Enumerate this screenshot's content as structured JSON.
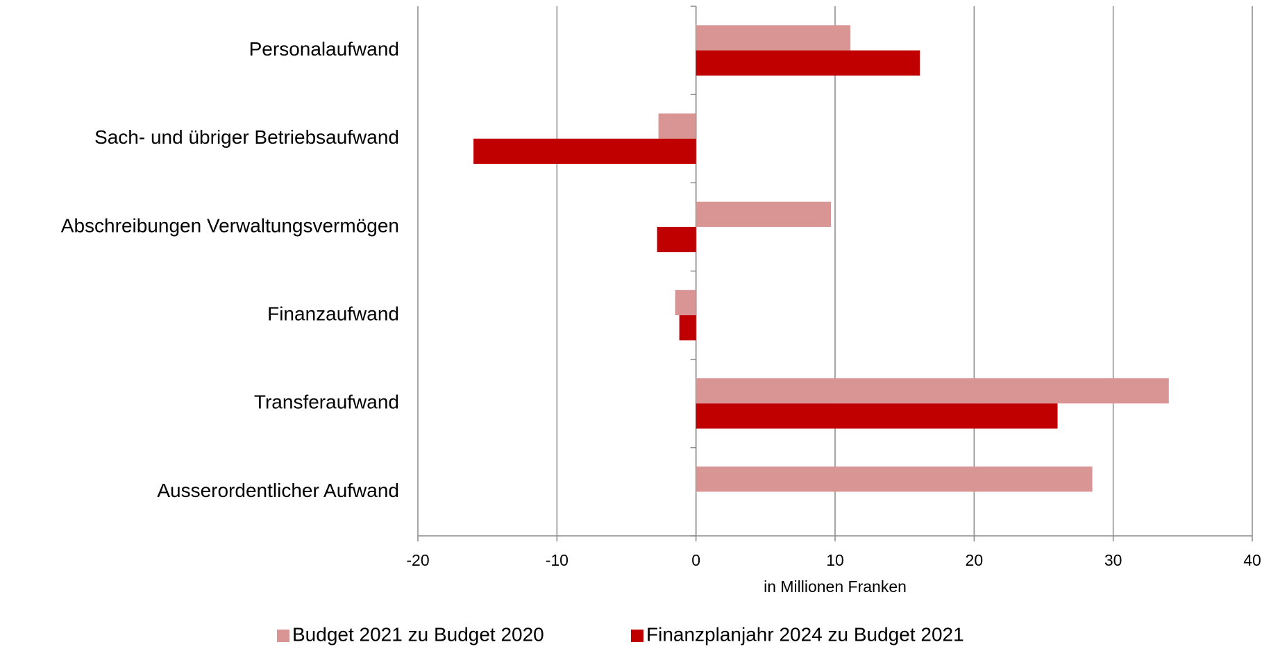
{
  "chart_data": {
    "type": "bar",
    "orientation": "horizontal",
    "categories": [
      "Personalaufwand",
      "Sach- und übriger Betriebsaufwand",
      "Abschreibungen Verwaltungsvermögen",
      "Finanzaufwand",
      "Transferaufwand",
      "Ausserordentlicher Aufwand"
    ],
    "series": [
      {
        "name": "Budget 2021 zu Budget 2020",
        "color": "#d99594",
        "values": [
          11.1,
          -2.7,
          9.7,
          -1.5,
          34.0,
          28.5
        ]
      },
      {
        "name": "Finanzplanjahr 2024 zu Budget 2021",
        "color": "#c00000",
        "values": [
          16.1,
          -16.0,
          -2.8,
          -1.2,
          26.0,
          null
        ]
      }
    ],
    "x_label": "in Millionen Franken",
    "xlim": [
      -20,
      40
    ],
    "xticks": [
      -20,
      -10,
      0,
      10,
      20,
      30,
      40
    ],
    "grid": true,
    "legend": "bottom"
  }
}
